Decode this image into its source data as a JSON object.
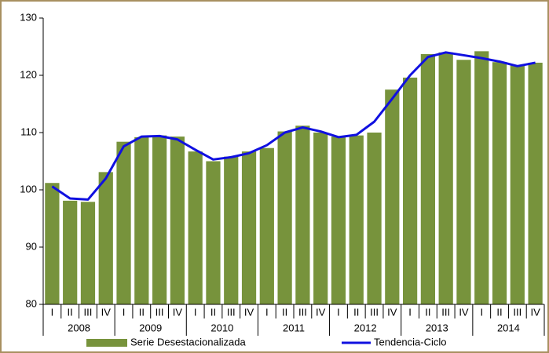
{
  "chart_data": {
    "type": "bar_line",
    "categories": [
      "I",
      "II",
      "III",
      "IV",
      "I",
      "II",
      "III",
      "IV",
      "I",
      "II",
      "III",
      "IV",
      "I",
      "II",
      "III",
      "IV",
      "I",
      "II",
      "III",
      "IV",
      "I",
      "II",
      "III",
      "IV",
      "I",
      "II",
      "III",
      "IV"
    ],
    "groups": [
      "2008",
      "2009",
      "2010",
      "2011",
      "2012",
      "2013",
      "2014"
    ],
    "series": [
      {
        "name": "Serie Desestacionalizada",
        "type": "bar",
        "color": "#77933c",
        "values": [
          101.2,
          98.1,
          97.9,
          103.1,
          108.4,
          109.2,
          109.5,
          109.3,
          106.7,
          105.0,
          105.8,
          106.7,
          107.3,
          110.2,
          111.2,
          110.0,
          109.3,
          109.5,
          110.0,
          117.5,
          119.6,
          123.7,
          124.0,
          122.7,
          124.2,
          122.3,
          121.7,
          122.2
        ]
      },
      {
        "name": "Tendencia-Ciclo",
        "type": "line",
        "color": "#1010e0",
        "values": [
          100.6,
          98.5,
          98.3,
          102.0,
          107.6,
          109.3,
          109.4,
          108.8,
          107.0,
          105.3,
          105.7,
          106.4,
          107.8,
          110.0,
          110.9,
          110.2,
          109.2,
          109.6,
          111.9,
          115.9,
          120.0,
          123.2,
          124.0,
          123.5,
          123.0,
          122.4,
          121.6,
          122.2
        ]
      }
    ],
    "ylim": [
      80,
      130
    ],
    "yticks": [
      80,
      90,
      100,
      110,
      120,
      130
    ],
    "grid": false,
    "legend": "bottom"
  }
}
